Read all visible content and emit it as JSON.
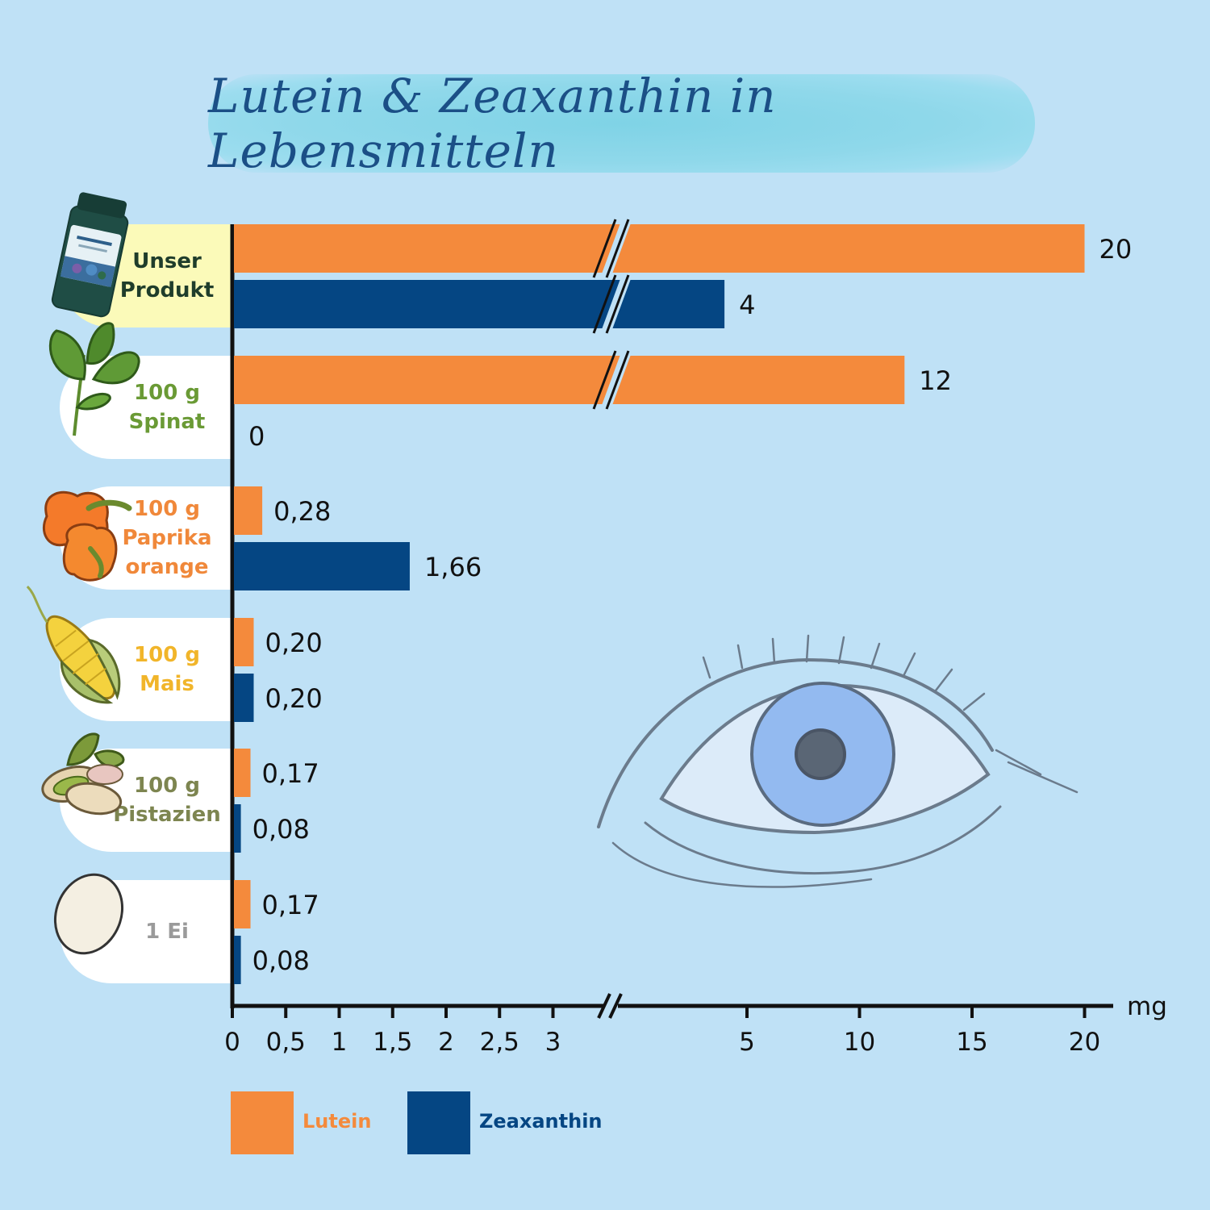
{
  "title": "Lutein & Zeaxanthin in Lebensmitteln",
  "rows": [
    {
      "line1": "Unser",
      "line2": "Produkt",
      "line3": "",
      "color": "#1f3d2b",
      "icon": "supplement-bottle-icon",
      "highlight": true
    },
    {
      "line1": "100 g",
      "line2": "Spinat",
      "line3": "",
      "color": "#6a9a35",
      "icon": "spinach-icon",
      "highlight": false
    },
    {
      "line1": "100 g",
      "line2": "Paprika",
      "line3": "orange",
      "color": "#f0883a",
      "icon": "bell-pepper-icon",
      "highlight": false
    },
    {
      "line1": "100 g",
      "line2": "Mais",
      "line3": "",
      "color": "#f1b52a",
      "icon": "corn-icon",
      "highlight": false
    },
    {
      "line1": "100 g",
      "line2": "Pistazien",
      "line3": "",
      "color": "#7d8550",
      "icon": "pistachio-icon",
      "highlight": false
    },
    {
      "line1": "1 Ei",
      "line2": "",
      "line3": "",
      "color": "#9a9a9a",
      "icon": "egg-icon",
      "highlight": false
    }
  ],
  "legend": {
    "lutein": "Lutein",
    "zeaxanthin": "Zeaxanthin"
  },
  "colors": {
    "lutein": "#f48a3c",
    "zeaxanthin": "#054683",
    "background": "#bfe1f6",
    "title": "#1b4f86"
  },
  "chart_data": {
    "type": "bar",
    "orientation": "horizontal",
    "axis_break": [
      3,
      4
    ],
    "categories": [
      "Unser Produkt",
      "100 g Spinat",
      "100 g Paprika orange",
      "100 g Mais",
      "100 g Pistazien",
      "1 Ei"
    ],
    "series": [
      {
        "name": "Lutein",
        "values": [
          20,
          12,
          0.28,
          0.2,
          0.17,
          0.17
        ],
        "labels": [
          "20",
          "12",
          "0,28",
          "0,20",
          "0,17",
          "0,17"
        ]
      },
      {
        "name": "Zeaxanthin",
        "values": [
          4,
          0,
          1.66,
          0.2,
          0.08,
          0.08
        ],
        "labels": [
          "4",
          "0",
          "1,66",
          "0,20",
          "0,08",
          "0,08"
        ]
      }
    ],
    "x_ticks_low": [
      0,
      0.5,
      1,
      1.5,
      2,
      2.5,
      3
    ],
    "x_ticks_low_labels": [
      "0",
      "0,5",
      "1",
      "1,5",
      "2",
      "2,5",
      "3"
    ],
    "x_ticks_high": [
      5,
      10,
      15,
      20
    ],
    "x_ticks_high_labels": [
      "5",
      "10",
      "15",
      "20"
    ],
    "xlabel": "mg",
    "legend_position": "bottom-left"
  }
}
